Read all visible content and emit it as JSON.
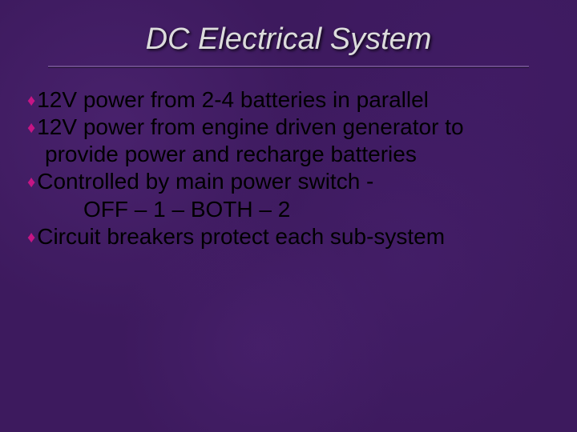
{
  "slide": {
    "title": "DC Electrical System",
    "title_fontsize": 38,
    "title_color": "#dcdcdc",
    "title_italic": true,
    "underline_color": "#6a4a8a",
    "background_color": "#3d1a5e",
    "bullet_color": "#c71585",
    "body_text_color": "#000000",
    "body_fontsize": 28,
    "bullets": [
      {
        "text": "12V power from 2-4 batteries in parallel"
      },
      {
        "text": "12V power from engine driven generator to",
        "cont": "provide power and recharge batteries"
      },
      {
        "text": "Controlled by main power switch -",
        "indent": "OFF – 1 – BOTH – 2"
      },
      {
        "text": "Circuit breakers protect each sub-system"
      }
    ]
  }
}
